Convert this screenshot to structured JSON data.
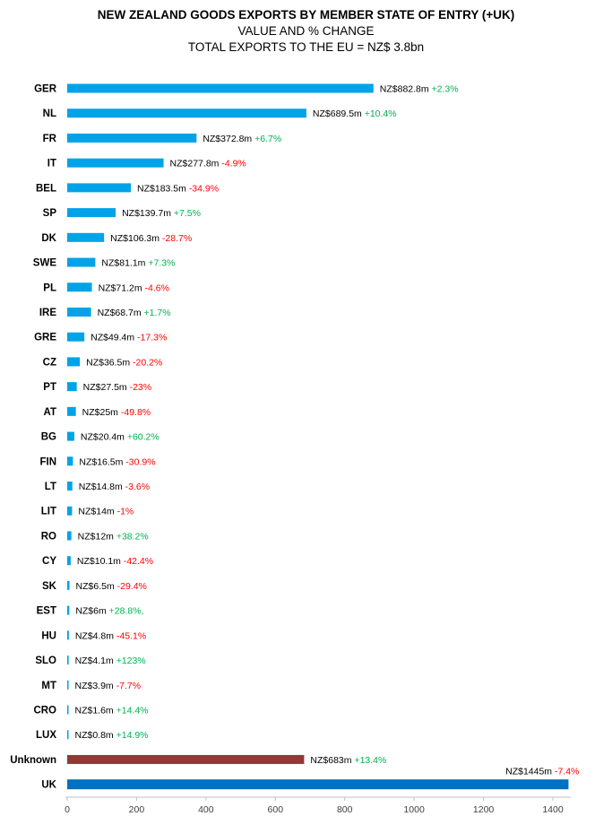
{
  "title": "NEW ZEALAND GOODS EXPORTS BY MEMBER STATE OF ENTRY (+UK)",
  "subtitle_1": "VALUE AND % CHANGE",
  "subtitle_2": "TOTAL EXPORTS TO THE EU = NZ$ 3.8bn",
  "colors": {
    "eu_bar": "#00a3e8",
    "unknown_bar": "#953735",
    "uk_bar": "#0070c0",
    "positive_change": "#00b050",
    "negative_change": "#ff0000",
    "value_text": "#000000"
  },
  "chart_data": {
    "type": "bar",
    "orientation": "horizontal",
    "xlim": [
      0,
      1500
    ],
    "xticks": [
      0,
      200,
      400,
      600,
      800,
      1000,
      1200,
      1400
    ],
    "grid": false,
    "categories": [
      "GER",
      "NL",
      "FR",
      "IT",
      "BEL",
      "SP",
      "DK",
      "SWE",
      "PL",
      "IRE",
      "GRE",
      "CZ",
      "PT",
      "AT",
      "BG",
      "FIN",
      "LT",
      "LIT",
      "RO",
      "CY",
      "SK",
      "EST",
      "HU",
      "SLO",
      "MT",
      "CRO",
      "LUX",
      "Unknown",
      "UK"
    ],
    "values": [
      882.8,
      689.5,
      372.8,
      277.8,
      183.5,
      139.7,
      106.3,
      81.1,
      71.2,
      68.7,
      49.4,
      36.5,
      27.5,
      25,
      20.4,
      16.5,
      14.8,
      14,
      12,
      10.1,
      6.5,
      6,
      4.8,
      4.1,
      3.9,
      1.6,
      0.8,
      683,
      1445
    ],
    "value_labels": [
      "NZ$882.8m",
      "NZ$689.5m",
      "NZ$372.8m",
      "NZ$277.8m",
      "NZ$183.5m",
      "NZ$139.7m",
      "NZ$106.3m",
      "NZ$81.1m",
      "NZ$71.2m",
      "NZ$68.7m",
      "NZ$49.4m",
      "NZ$36.5m",
      "NZ$27.5m",
      "NZ$25m",
      "NZ$20.4m",
      "NZ$16.5m",
      "NZ$14.8m",
      "NZ$14m",
      "NZ$12m",
      "NZ$10.1m",
      "NZ$6.5m",
      "NZ$6m",
      "NZ$4.8m",
      "NZ$4.1m",
      "NZ$3.9m",
      "NZ$1.6m",
      "NZ$0.8m",
      "NZ$683m",
      "NZ$1445m"
    ],
    "change_labels": [
      "+2.3%",
      "+10.4%",
      "+6.7%",
      "-4.9%",
      "-34.9%",
      "+7.5%",
      "-28.7%",
      "+7.3%",
      "-4.6%",
      "+1.7%",
      "-17.3%",
      "-20.2%",
      "-23%",
      "-49.8%",
      "+60.2%",
      "-30.9%",
      "-3.6%",
      "-1%",
      "+38.2%",
      "-42.4%",
      "-29.4%",
      "+28.8%,",
      "-45.1%",
      "+123%",
      "-7.7%",
      "+14.4%",
      "+14.9%",
      "+13.4%",
      "-7.4%"
    ],
    "bar_groups": [
      "eu",
      "eu",
      "eu",
      "eu",
      "eu",
      "eu",
      "eu",
      "eu",
      "eu",
      "eu",
      "eu",
      "eu",
      "eu",
      "eu",
      "eu",
      "eu",
      "eu",
      "eu",
      "eu",
      "eu",
      "eu",
      "eu",
      "eu",
      "eu",
      "eu",
      "eu",
      "eu",
      "unknown",
      "uk"
    ]
  }
}
